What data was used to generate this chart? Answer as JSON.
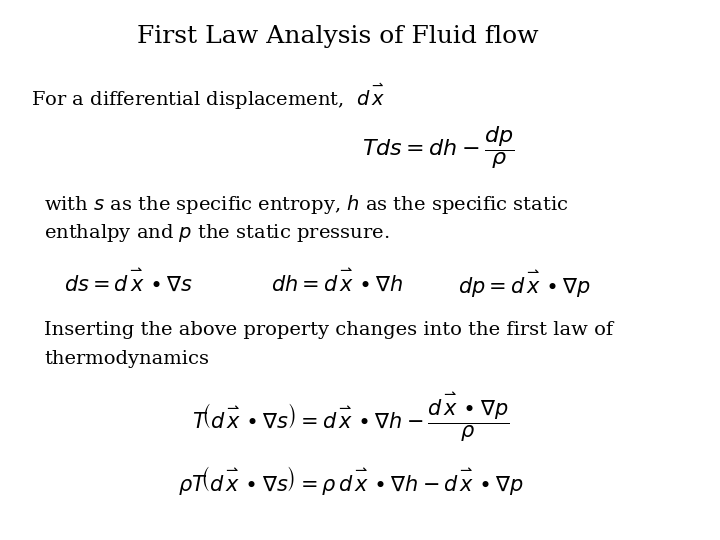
{
  "title": "First Law Analysis of Fluid flow",
  "title_fontsize": 18,
  "bg_color": "#ffffff",
  "text_color": "#000000",
  "figsize": [
    7.2,
    5.4
  ],
  "dpi": 100,
  "line1_text": "For a differential displacement,",
  "line2a": "with ",
  "line2b": " as the specific entropy, ",
  "line2c": " as the specific static",
  "line3": "enthalpy and ",
  "line3b": " the static pressure.",
  "line4a": "Inserting the above property changes into the first law of",
  "line4b": "thermodynamics",
  "font_family": "DejaVu Serif",
  "body_fontsize": 14
}
